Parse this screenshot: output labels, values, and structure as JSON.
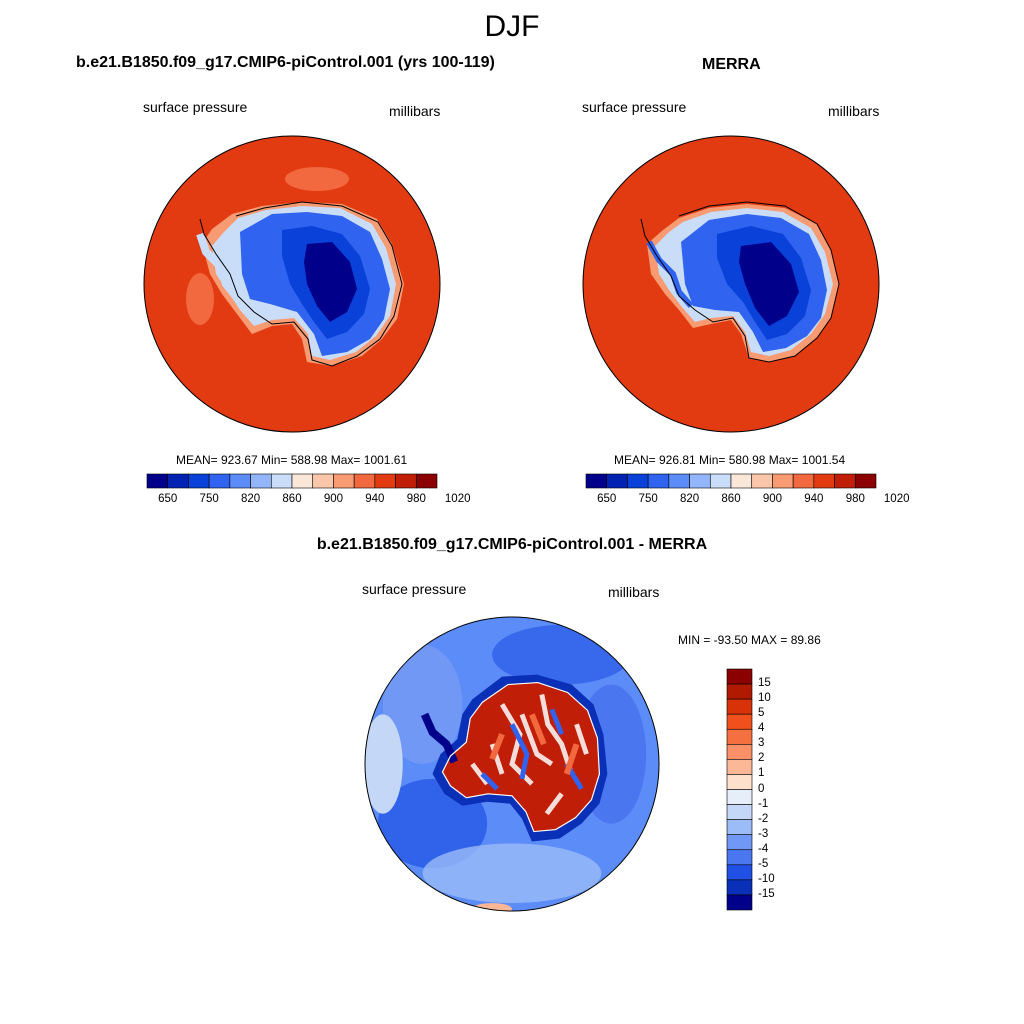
{
  "season": "DJF",
  "panels": [
    {
      "title": "b.e21.B1850.f09_g17.CMIP6-piControl.001 (yrs 100-119)",
      "left_label": "surface pressure",
      "right_label": "millibars",
      "stats": "MEAN= 923.67  Min= 588.98  Max= 1001.61",
      "colorbar_ticks": [
        "650",
        "750",
        "820",
        "860",
        "900",
        "940",
        "980",
        "1020"
      ],
      "colorbar_colors": [
        "#00008b",
        "#0022b2",
        "#0a41d8",
        "#2f63f0",
        "#5c8cf8",
        "#93b5f9",
        "#c9dcf8",
        "#fbe7d8",
        "#fbc7aa",
        "#f89a72",
        "#f2683f",
        "#e23b12",
        "#c01e07",
        "#8b0000"
      ]
    },
    {
      "title": "MERRA",
      "left_label": "surface pressure",
      "right_label": "millibars",
      "stats": "MEAN= 926.81  Min= 580.98  Max= 1001.54",
      "colorbar_ticks": [
        "650",
        "750",
        "820",
        "860",
        "900",
        "940",
        "980",
        "1020"
      ],
      "colorbar_colors": [
        "#00008b",
        "#0022b2",
        "#0a41d8",
        "#2f63f0",
        "#5c8cf8",
        "#93b5f9",
        "#c9dcf8",
        "#fbe7d8",
        "#fbc7aa",
        "#f89a72",
        "#f2683f",
        "#e23b12",
        "#c01e07",
        "#8b0000"
      ]
    }
  ],
  "diff_panel": {
    "title": "b.e21.B1850.f09_g17.CMIP6-piControl.001 - MERRA",
    "left_label": "surface pressure",
    "right_label": "millibars",
    "stats": "MIN = -93.50 MAX =  89.86",
    "colorbar_ticks": [
      "15",
      "10",
      "5",
      "4",
      "3",
      "2",
      "1",
      "0",
      "-1",
      "-2",
      "-3",
      "-4",
      "-5",
      "-10",
      "-15"
    ],
    "colorbar_colors": [
      "#8b0000",
      "#b01a00",
      "#d83208",
      "#f0501c",
      "#f57040",
      "#f99068",
      "#fbb796",
      "#fde1cc",
      "#e6eefa",
      "#c4d7f7",
      "#9bbcf6",
      "#7098f4",
      "#4a76f0",
      "#2050e4",
      "#0b30b8",
      "#00008b"
    ],
    "background_color": "#5c8cf8",
    "land_colors": [
      "#c01e07",
      "#f2683f",
      "#ffffff",
      "#2f63f0"
    ]
  },
  "map_colors": {
    "ocean": "#e23b12",
    "ice_deep": "#00008b",
    "ice_mid": "#0a41d8",
    "ice_light": "#5c8cf8",
    "ice_edge": "#c9dcf8"
  }
}
